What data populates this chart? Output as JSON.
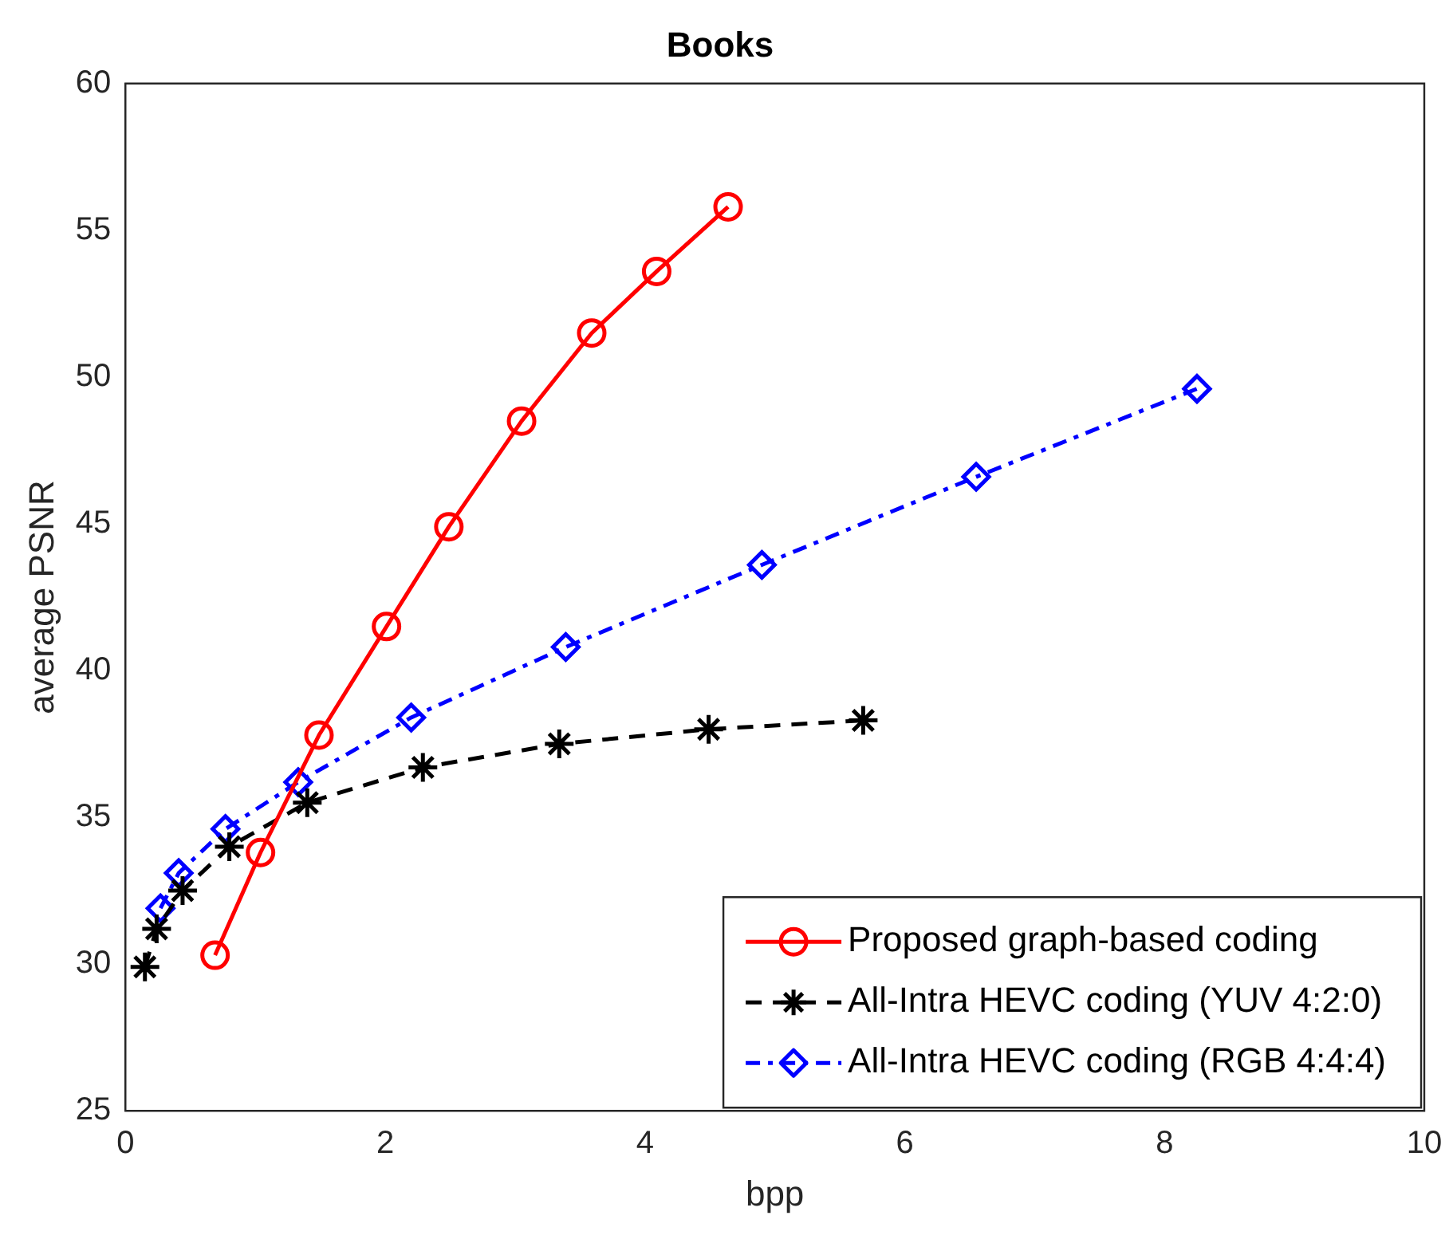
{
  "chart_data": {
    "type": "line",
    "title": "Books",
    "xlabel": "bpp",
    "ylabel": "average PSNR",
    "xlim": [
      0,
      10
    ],
    "xticks": [
      0,
      2,
      4,
      6,
      8,
      10
    ],
    "ylim": [
      25,
      60
    ],
    "yticks": [
      25,
      30,
      35,
      40,
      45,
      50,
      55,
      60
    ],
    "grid": false,
    "legend": "bottom right",
    "series": [
      {
        "name": "Proposed graph-based coding",
        "color": "#ff0000",
        "marker": "circle",
        "line_style": "solid",
        "x": [
          0.69,
          1.04,
          1.49,
          2.01,
          2.49,
          3.05,
          3.59,
          4.09,
          4.64
        ],
        "values": [
          30.3,
          33.8,
          37.8,
          41.5,
          44.9,
          48.5,
          51.5,
          53.6,
          55.8
        ]
      },
      {
        "name": "All-Intra HEVC coding (YUV 4:2:0)",
        "color": "#000000",
        "marker": "cross",
        "line_style": "dashed",
        "x": [
          0.15,
          0.24,
          0.44,
          0.8,
          1.4,
          2.29,
          3.34,
          4.49,
          5.68
        ],
        "values": [
          29.9,
          31.2,
          32.5,
          34.0,
          35.5,
          36.7,
          37.5,
          38.0,
          38.3
        ]
      },
      {
        "name": "All-Intra HEVC coding (RGB 4:4:4)",
        "color": "#0000ff",
        "marker": "diamond",
        "line_style": "dashdot",
        "x": [
          0.27,
          0.41,
          0.77,
          1.33,
          2.2,
          3.39,
          4.9,
          6.55,
          8.25
        ],
        "values": [
          31.9,
          33.1,
          34.6,
          36.2,
          38.4,
          40.8,
          43.6,
          46.6,
          49.6
        ]
      }
    ]
  }
}
